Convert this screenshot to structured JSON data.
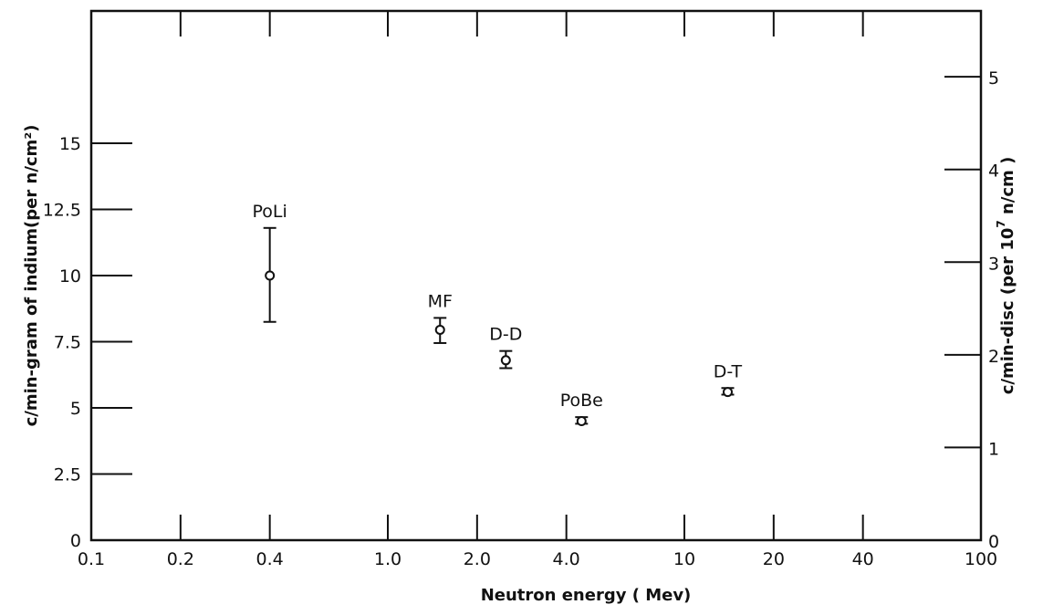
{
  "chart_data": {
    "type": "scatter",
    "xlabel": "Neutron energy ( Mev)",
    "ylabel_left": "c/min-gram of indium(per n/cm²)",
    "ylabel_right": {
      "prefix": "c/min-disc  (per 10",
      "superscript": "7",
      "suffix": " n/cm )"
    },
    "x_scale": "log",
    "xlim": [
      0.1,
      100
    ],
    "ylim_left": [
      0,
      20
    ],
    "ylim_right": [
      0,
      5.71
    ],
    "x_ticks": [
      {
        "value": 0.1,
        "label": "0.1"
      },
      {
        "value": 0.2,
        "label": "0.2"
      },
      {
        "value": 0.4,
        "label": "0.4"
      },
      {
        "value": 1.0,
        "label": "1.0"
      },
      {
        "value": 2.0,
        "label": "2.0"
      },
      {
        "value": 4.0,
        "label": "4.0"
      },
      {
        "value": 10,
        "label": "10"
      },
      {
        "value": 20,
        "label": "20"
      },
      {
        "value": 40,
        "label": "40"
      },
      {
        "value": 100,
        "label": "100"
      }
    ],
    "y_ticks_left": [
      {
        "value": 0,
        "label": "0"
      },
      {
        "value": 2.5,
        "label": "2.5"
      },
      {
        "value": 5,
        "label": "5"
      },
      {
        "value": 7.5,
        "label": "7.5"
      },
      {
        "value": 10,
        "label": "10"
      },
      {
        "value": 12.5,
        "label": "12.5"
      },
      {
        "value": 15,
        "label": "15"
      }
    ],
    "y_ticks_right": [
      {
        "value": 0,
        "label": "0"
      },
      {
        "value": 1,
        "label": "1"
      },
      {
        "value": 2,
        "label": "2"
      },
      {
        "value": 3,
        "label": "3"
      },
      {
        "value": 4,
        "label": "4"
      },
      {
        "value": 5,
        "label": "5"
      }
    ],
    "points": [
      {
        "label": "PoLi",
        "x": 0.4,
        "y": 10.0,
        "yerr_low": 8.25,
        "yerr_high": 11.8
      },
      {
        "label": "MF",
        "x": 1.5,
        "y": 7.95,
        "yerr_low": 7.45,
        "yerr_high": 8.4
      },
      {
        "label": "D-D",
        "x": 2.5,
        "y": 6.8,
        "yerr_low": 6.5,
        "yerr_high": 7.15
      },
      {
        "label": "PoBe",
        "x": 4.5,
        "y": 4.5,
        "yerr_low": 4.4,
        "yerr_high": 4.65
      },
      {
        "label": "D-T",
        "x": 14,
        "y": 5.6,
        "yerr_low": 5.5,
        "yerr_high": 5.75
      }
    ],
    "grid": false,
    "legend": false
  }
}
